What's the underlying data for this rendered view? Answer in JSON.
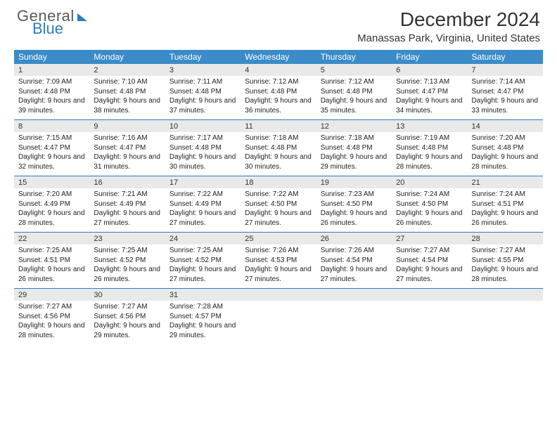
{
  "logo": {
    "word1": "General",
    "word2": "Blue"
  },
  "title": "December 2024",
  "location": "Manassas Park, Virginia, United States",
  "colors": {
    "header_bar": "#3b8bc8",
    "daynum_bg": "#e9e9e9",
    "week_border": "#2f7bbf",
    "logo_gray": "#5a5a5a",
    "logo_blue": "#2f7bbf"
  },
  "daysOfWeek": [
    "Sunday",
    "Monday",
    "Tuesday",
    "Wednesday",
    "Thursday",
    "Friday",
    "Saturday"
  ],
  "weeks": [
    [
      {
        "n": "1",
        "sr": "7:09 AM",
        "ss": "4:48 PM",
        "dl": "9 hours and 39 minutes."
      },
      {
        "n": "2",
        "sr": "7:10 AM",
        "ss": "4:48 PM",
        "dl": "9 hours and 38 minutes."
      },
      {
        "n": "3",
        "sr": "7:11 AM",
        "ss": "4:48 PM",
        "dl": "9 hours and 37 minutes."
      },
      {
        "n": "4",
        "sr": "7:12 AM",
        "ss": "4:48 PM",
        "dl": "9 hours and 36 minutes."
      },
      {
        "n": "5",
        "sr": "7:12 AM",
        "ss": "4:48 PM",
        "dl": "9 hours and 35 minutes."
      },
      {
        "n": "6",
        "sr": "7:13 AM",
        "ss": "4:47 PM",
        "dl": "9 hours and 34 minutes."
      },
      {
        "n": "7",
        "sr": "7:14 AM",
        "ss": "4:47 PM",
        "dl": "9 hours and 33 minutes."
      }
    ],
    [
      {
        "n": "8",
        "sr": "7:15 AM",
        "ss": "4:47 PM",
        "dl": "9 hours and 32 minutes."
      },
      {
        "n": "9",
        "sr": "7:16 AM",
        "ss": "4:47 PM",
        "dl": "9 hours and 31 minutes."
      },
      {
        "n": "10",
        "sr": "7:17 AM",
        "ss": "4:48 PM",
        "dl": "9 hours and 30 minutes."
      },
      {
        "n": "11",
        "sr": "7:18 AM",
        "ss": "4:48 PM",
        "dl": "9 hours and 30 minutes."
      },
      {
        "n": "12",
        "sr": "7:18 AM",
        "ss": "4:48 PM",
        "dl": "9 hours and 29 minutes."
      },
      {
        "n": "13",
        "sr": "7:19 AM",
        "ss": "4:48 PM",
        "dl": "9 hours and 28 minutes."
      },
      {
        "n": "14",
        "sr": "7:20 AM",
        "ss": "4:48 PM",
        "dl": "9 hours and 28 minutes."
      }
    ],
    [
      {
        "n": "15",
        "sr": "7:20 AM",
        "ss": "4:49 PM",
        "dl": "9 hours and 28 minutes."
      },
      {
        "n": "16",
        "sr": "7:21 AM",
        "ss": "4:49 PM",
        "dl": "9 hours and 27 minutes."
      },
      {
        "n": "17",
        "sr": "7:22 AM",
        "ss": "4:49 PM",
        "dl": "9 hours and 27 minutes."
      },
      {
        "n": "18",
        "sr": "7:22 AM",
        "ss": "4:50 PM",
        "dl": "9 hours and 27 minutes."
      },
      {
        "n": "19",
        "sr": "7:23 AM",
        "ss": "4:50 PM",
        "dl": "9 hours and 26 minutes."
      },
      {
        "n": "20",
        "sr": "7:24 AM",
        "ss": "4:50 PM",
        "dl": "9 hours and 26 minutes."
      },
      {
        "n": "21",
        "sr": "7:24 AM",
        "ss": "4:51 PM",
        "dl": "9 hours and 26 minutes."
      }
    ],
    [
      {
        "n": "22",
        "sr": "7:25 AM",
        "ss": "4:51 PM",
        "dl": "9 hours and 26 minutes."
      },
      {
        "n": "23",
        "sr": "7:25 AM",
        "ss": "4:52 PM",
        "dl": "9 hours and 26 minutes."
      },
      {
        "n": "24",
        "sr": "7:25 AM",
        "ss": "4:52 PM",
        "dl": "9 hours and 27 minutes."
      },
      {
        "n": "25",
        "sr": "7:26 AM",
        "ss": "4:53 PM",
        "dl": "9 hours and 27 minutes."
      },
      {
        "n": "26",
        "sr": "7:26 AM",
        "ss": "4:54 PM",
        "dl": "9 hours and 27 minutes."
      },
      {
        "n": "27",
        "sr": "7:27 AM",
        "ss": "4:54 PM",
        "dl": "9 hours and 27 minutes."
      },
      {
        "n": "28",
        "sr": "7:27 AM",
        "ss": "4:55 PM",
        "dl": "9 hours and 28 minutes."
      }
    ],
    [
      {
        "n": "29",
        "sr": "7:27 AM",
        "ss": "4:56 PM",
        "dl": "9 hours and 28 minutes."
      },
      {
        "n": "30",
        "sr": "7:27 AM",
        "ss": "4:56 PM",
        "dl": "9 hours and 29 minutes."
      },
      {
        "n": "31",
        "sr": "7:28 AM",
        "ss": "4:57 PM",
        "dl": "9 hours and 29 minutes."
      },
      null,
      null,
      null,
      null
    ]
  ],
  "labels": {
    "sunrise": "Sunrise:",
    "sunset": "Sunset:",
    "daylight": "Daylight:"
  }
}
